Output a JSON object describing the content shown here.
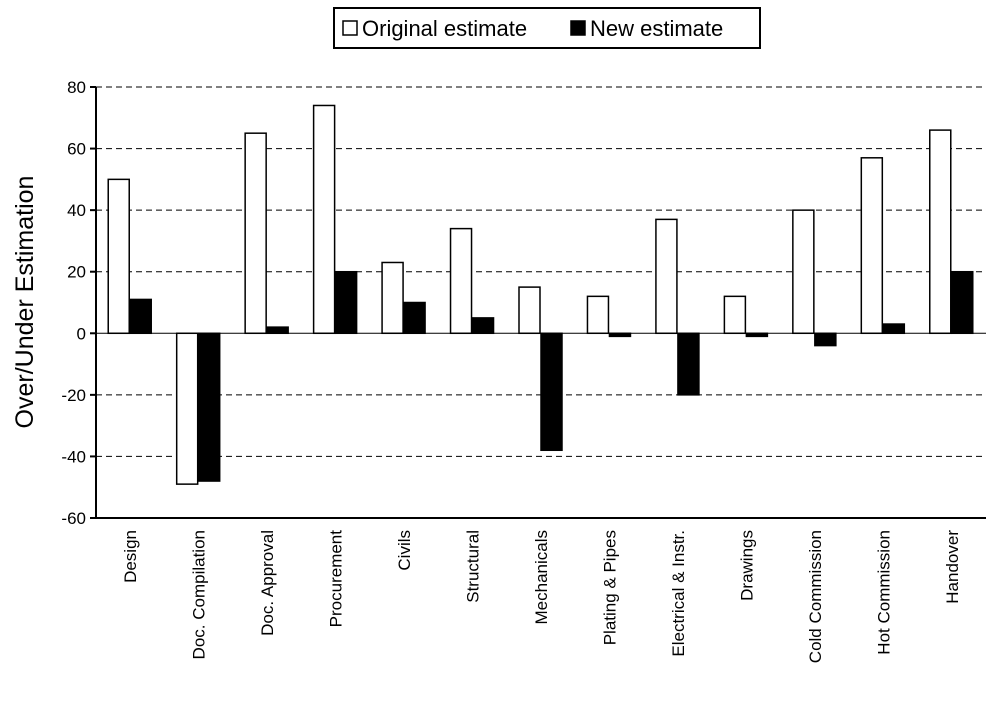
{
  "chart_data": {
    "type": "bar",
    "title": "",
    "xlabel": "",
    "ylabel": "Over/Under Estimation",
    "ylim": [
      -60,
      80
    ],
    "yticks": [
      -60,
      -40,
      -20,
      0,
      20,
      40,
      60,
      80
    ],
    "grid": true,
    "legend_position": "top",
    "categories": [
      "Design",
      "Doc. Compilation",
      "Doc. Approval",
      "Procurement",
      "Civils",
      "Structural",
      "Mechanicals",
      "Plating & Pipes",
      "Electrical & Instr.",
      "Drawings",
      "Cold Commission",
      "Hot Commission",
      "Handover"
    ],
    "series": [
      {
        "name": "Original estimate",
        "color": "#ffffff",
        "values": [
          50,
          -49,
          65,
          74,
          23,
          34,
          15,
          12,
          37,
          12,
          40,
          57,
          66
        ]
      },
      {
        "name": "New estimate",
        "color": "#000000",
        "values": [
          11,
          -48,
          2,
          20,
          10,
          5,
          -38,
          -1,
          -20,
          -1,
          -4,
          3,
          20
        ]
      }
    ]
  }
}
